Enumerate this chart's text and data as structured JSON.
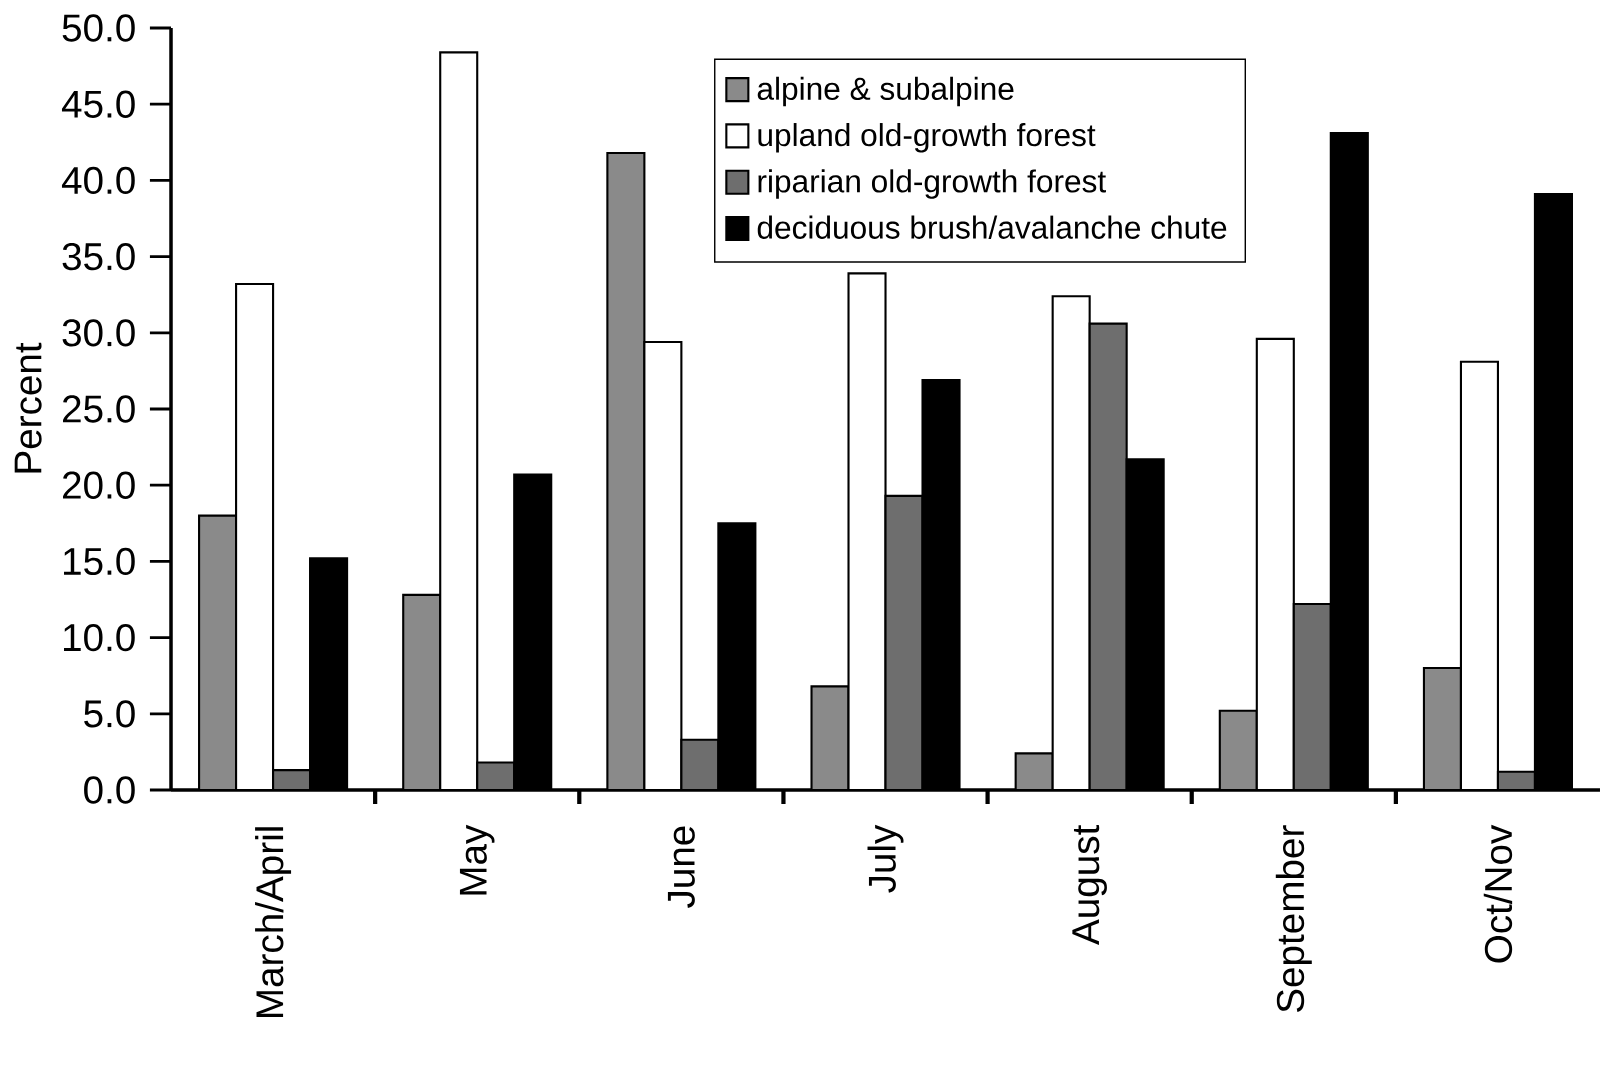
{
  "chart_data": {
    "type": "bar",
    "ylabel": "Percent",
    "categories": [
      "March/April",
      "May",
      "June",
      "July",
      "August",
      "September",
      "Oct/Nov"
    ],
    "series": [
      {
        "name": "alpine & subalpine",
        "color": "#8a8a8a",
        "values": [
          18.0,
          12.8,
          41.8,
          6.8,
          2.4,
          5.2,
          8.0
        ]
      },
      {
        "name": "upland old-growth forest",
        "color": "#ffffff",
        "values": [
          33.2,
          48.4,
          29.4,
          33.9,
          32.4,
          29.6,
          28.1
        ]
      },
      {
        "name": "riparian old-growth forest",
        "color": "#6e6e6e",
        "values": [
          1.3,
          1.8,
          3.3,
          19.3,
          30.6,
          12.2,
          1.2
        ]
      },
      {
        "name": "deciduous brush/avalanche chute",
        "color": "#000000",
        "values": [
          15.2,
          20.7,
          17.5,
          26.9,
          21.7,
          43.1,
          39.1
        ]
      }
    ],
    "ylim": [
      0,
      50
    ],
    "yticks": [
      {
        "value": 0,
        "label": "0.0"
      },
      {
        "value": 5,
        "label": "5.0"
      },
      {
        "value": 10,
        "label": "10.0"
      },
      {
        "value": 15,
        "label": "15.0"
      },
      {
        "value": 20,
        "label": "20.0"
      },
      {
        "value": 25,
        "label": "25.0"
      },
      {
        "value": 30,
        "label": "30.0"
      },
      {
        "value": 35,
        "label": "35.0"
      },
      {
        "value": 40,
        "label": "40.0"
      },
      {
        "value": 45,
        "label": "45.0"
      },
      {
        "value": 50,
        "label": "50.0"
      }
    ],
    "legend": "top right",
    "grid": false
  }
}
